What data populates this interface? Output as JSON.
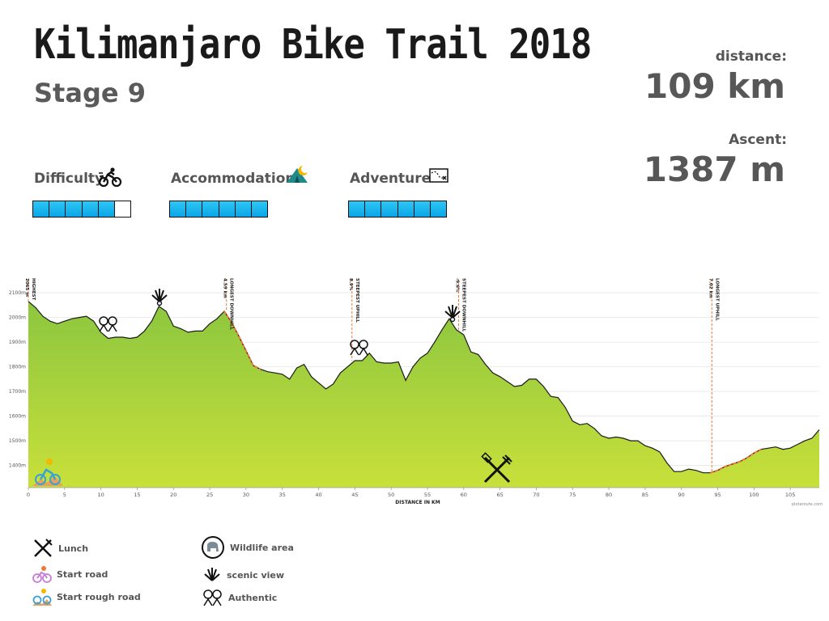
{
  "header": {
    "title": "Kilimanjaro Bike Trail 2018",
    "stage": "Stage 9"
  },
  "stats": {
    "distance_label": "distance:",
    "distance_value": "109 km",
    "ascent_label": "Ascent:",
    "ascent_value": "1387 m"
  },
  "ratings": {
    "difficulty": {
      "label": "Difficulty",
      "icon": "cyclist-icon",
      "value": 5,
      "max": 6
    },
    "accommodation": {
      "label": "Accommodation",
      "icon": "tent-icon",
      "value": 6,
      "max": 6
    },
    "adventure": {
      "label": "Adventure",
      "icon": "map-icon",
      "value": 6,
      "max": 6
    }
  },
  "chart_data": {
    "type": "area",
    "xlabel": "DISTANCE IN KM",
    "ylabel": "",
    "xlim": [
      0,
      109
    ],
    "ylim": [
      1310,
      2130
    ],
    "x_ticks": [
      0,
      5,
      10,
      15,
      20,
      25,
      30,
      35,
      40,
      45,
      50,
      55,
      60,
      65,
      70,
      75,
      80,
      85,
      90,
      95,
      100,
      105
    ],
    "y_ticks": [
      "1400m",
      "1500m",
      "1600m",
      "1700m",
      "1800m",
      "1900m",
      "2000m",
      "2100m"
    ],
    "y_tick_values": [
      1400,
      1500,
      1600,
      1700,
      1800,
      1900,
      2000,
      2100
    ],
    "series": [
      {
        "x": [
          0,
          1,
          2,
          3,
          4,
          5,
          6,
          7,
          8,
          9,
          10,
          11,
          12,
          13,
          14,
          15,
          16,
          17,
          18,
          19,
          20,
          21,
          22,
          23,
          24,
          25,
          26,
          27,
          28,
          29,
          30,
          31,
          32,
          33,
          34,
          35,
          36,
          37,
          38,
          39,
          40,
          41,
          42,
          43,
          44,
          45,
          46,
          47,
          48,
          49,
          50,
          51,
          52,
          53,
          54,
          55,
          56,
          57,
          58,
          59,
          60,
          61,
          62,
          63,
          64,
          65,
          66,
          67,
          68,
          69,
          70,
          71,
          72,
          73,
          74,
          75,
          76,
          77,
          78,
          79,
          80,
          81,
          82,
          83,
          84,
          85,
          86,
          87,
          88,
          89,
          90,
          91,
          92,
          93,
          94,
          95,
          96,
          97,
          98,
          99,
          100,
          101,
          102,
          103,
          104,
          105,
          106,
          107,
          108,
          109
        ],
        "values": [
          2065,
          2040,
          2005,
          1985,
          1975,
          1985,
          1995,
          2000,
          2005,
          1985,
          1940,
          1915,
          1920,
          1920,
          1915,
          1920,
          1945,
          1985,
          2045,
          2025,
          1965,
          1955,
          1940,
          1945,
          1945,
          1975,
          1995,
          2025,
          1980,
          1925,
          1865,
          1805,
          1790,
          1780,
          1775,
          1770,
          1750,
          1795,
          1810,
          1760,
          1735,
          1710,
          1730,
          1775,
          1800,
          1825,
          1825,
          1855,
          1820,
          1815,
          1815,
          1820,
          1745,
          1800,
          1835,
          1855,
          1900,
          1950,
          1995,
          1950,
          1930,
          1860,
          1850,
          1810,
          1775,
          1760,
          1740,
          1720,
          1725,
          1750,
          1750,
          1720,
          1680,
          1675,
          1635,
          1580,
          1565,
          1570,
          1550,
          1520,
          1510,
          1515,
          1510,
          1500,
          1500,
          1480,
          1470,
          1455,
          1410,
          1375,
          1375,
          1385,
          1380,
          1370,
          1370,
          1380,
          1395,
          1405,
          1415,
          1430,
          1450,
          1465,
          1470,
          1475,
          1465,
          1470,
          1485,
          1500,
          1510,
          1545
        ]
      }
    ],
    "annotations": [
      {
        "x": 0,
        "label": "HIGHEST",
        "sub": "2065 m"
      },
      {
        "x": 27.3,
        "label": "LONGEST DOWNHILL",
        "sub": "4.59 km"
      },
      {
        "x": 44.6,
        "label": "STEEPEST UPHILL",
        "sub": "8.9%"
      },
      {
        "x": 59.3,
        "label": "STEEPEST DOWNHILL",
        "sub": "-9.6%"
      },
      {
        "x": 94.2,
        "label": "LONGEST UPHILL",
        "sub": "7.02 km"
      }
    ],
    "credit": "plotaroute.com"
  },
  "legend": {
    "lunch": "Lunch",
    "start_road": "Start road",
    "start_rough_road": "Start rough road",
    "wildlife": "Wildlife area",
    "scenic": "scenic view",
    "authentic": "Authentic"
  },
  "colors": {
    "area_top": "#8cc63f",
    "area_bottom": "#c8e03a",
    "line": "#1a1a1a",
    "highlight": "#f07833",
    "rating_fill": "#16b2ee"
  }
}
